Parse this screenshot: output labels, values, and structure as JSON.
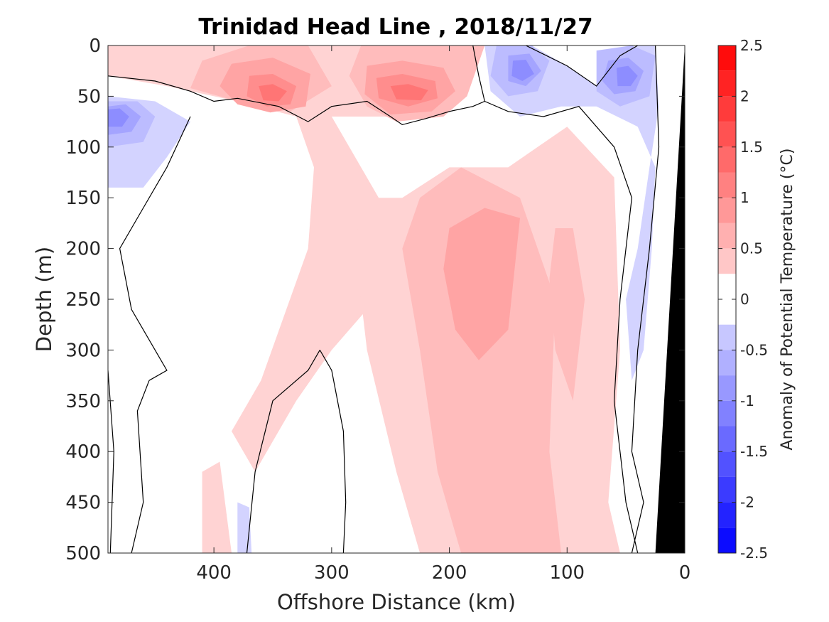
{
  "chart_data": {
    "type": "heatmap",
    "subtype": "filled-contour",
    "title": "Trinidad Head Line , 2018/11/27",
    "xlabel": "Offshore Distance (km)",
    "ylabel": "Depth (m)",
    "xlim": [
      490,
      0
    ],
    "x_reversed": true,
    "ylim": [
      0,
      500
    ],
    "y_reversed": true,
    "x_ticks": [
      400,
      300,
      200,
      100,
      0
    ],
    "x_tick_labels": [
      "400",
      "300",
      "200",
      "100",
      "0"
    ],
    "y_ticks": [
      0,
      50,
      100,
      150,
      200,
      250,
      300,
      350,
      400,
      450,
      500
    ],
    "y_tick_labels": [
      "0",
      "50",
      "100",
      "150",
      "200",
      "250",
      "300",
      "350",
      "400",
      "450",
      "500"
    ],
    "colorbar": {
      "label": "Anomaly of Potential Temperature (°C)",
      "range": [
        -2.5,
        2.5
      ],
      "step": 0.25,
      "ticks": [
        2.5,
        2,
        1.5,
        1,
        0.5,
        0,
        -0.5,
        -1,
        -1.5,
        -2,
        -2.5
      ],
      "tick_labels": [
        "2.5",
        "2",
        "1.5",
        "1",
        "0.5",
        "0",
        "-0.5",
        "-1",
        "-1.5",
        "-2",
        "-2.5"
      ],
      "colormap": "blue-white-red"
    },
    "grid": false,
    "contour_lines": [
      0
    ],
    "bathymetry_color": "#000000",
    "bathymetry": [
      [
        25,
        500
      ],
      [
        15,
        300
      ],
      [
        5,
        100
      ],
      [
        0,
        0
      ],
      [
        0,
        500
      ]
    ],
    "regions": [
      {
        "level": 0.25,
        "points": [
          [
            490,
            30
          ],
          [
            440,
            40
          ],
          [
            380,
            55
          ],
          [
            330,
            70
          ],
          [
            230,
            70
          ],
          [
            205,
            50
          ],
          [
            175,
            0
          ],
          [
            350,
            0
          ],
          [
            490,
            0
          ]
        ]
      },
      {
        "level": 0.5,
        "points": [
          [
            370,
            0
          ],
          [
            320,
            0
          ],
          [
            300,
            40
          ],
          [
            335,
            65
          ],
          [
            380,
            55
          ],
          [
            420,
            42
          ],
          [
            410,
            15
          ]
        ]
      },
      {
        "level": 0.75,
        "points": [
          [
            385,
            18
          ],
          [
            350,
            12
          ],
          [
            318,
            28
          ],
          [
            322,
            60
          ],
          [
            352,
            66
          ],
          [
            380,
            58
          ],
          [
            395,
            40
          ]
        ]
      },
      {
        "level": 1.0,
        "points": [
          [
            370,
            30
          ],
          [
            350,
            28
          ],
          [
            330,
            40
          ],
          [
            335,
            58
          ],
          [
            355,
            60
          ],
          [
            372,
            50
          ]
        ]
      },
      {
        "level": 1.25,
        "points": [
          [
            362,
            40
          ],
          [
            350,
            38
          ],
          [
            338,
            45
          ],
          [
            345,
            55
          ],
          [
            358,
            54
          ]
        ]
      },
      {
        "level": 0.5,
        "points": [
          [
            275,
            0
          ],
          [
            210,
            0
          ],
          [
            170,
            0
          ],
          [
            185,
            50
          ],
          [
            205,
            70
          ],
          [
            245,
            75
          ],
          [
            270,
            60
          ],
          [
            285,
            30
          ]
        ]
      },
      {
        "level": 0.75,
        "points": [
          [
            270,
            20
          ],
          [
            240,
            15
          ],
          [
            205,
            22
          ],
          [
            195,
            45
          ],
          [
            215,
            65
          ],
          [
            250,
            68
          ],
          [
            272,
            48
          ]
        ]
      },
      {
        "level": 1.0,
        "points": [
          [
            262,
            32
          ],
          [
            240,
            28
          ],
          [
            212,
            35
          ],
          [
            210,
            52
          ],
          [
            235,
            60
          ],
          [
            260,
            52
          ]
        ]
      },
      {
        "level": 1.25,
        "points": [
          [
            250,
            40
          ],
          [
            235,
            38
          ],
          [
            218,
            44
          ],
          [
            224,
            54
          ],
          [
            245,
            53
          ]
        ]
      },
      {
        "level": 0.25,
        "points": [
          [
            330,
            70
          ],
          [
            315,
            120
          ],
          [
            320,
            200
          ],
          [
            360,
            330
          ],
          [
            385,
            380
          ],
          [
            365,
            420
          ],
          [
            330,
            350
          ],
          [
            300,
            300
          ],
          [
            270,
            260
          ],
          [
            260,
            150
          ],
          [
            285,
            100
          ],
          [
            300,
            70
          ]
        ]
      },
      {
        "level": 0.25,
        "points": [
          [
            275,
            150
          ],
          [
            240,
            150
          ],
          [
            200,
            120
          ],
          [
            150,
            120
          ],
          [
            100,
            80
          ],
          [
            60,
            130
          ],
          [
            55,
            300
          ],
          [
            65,
            450
          ],
          [
            55,
            500
          ],
          [
            225,
            500
          ],
          [
            245,
            420
          ],
          [
            270,
            300
          ],
          [
            280,
            200
          ]
        ]
      },
      {
        "level": 0.5,
        "points": [
          [
            240,
            200
          ],
          [
            225,
            150
          ],
          [
            190,
            120
          ],
          [
            140,
            150
          ],
          [
            110,
            250
          ],
          [
            115,
            400
          ],
          [
            105,
            500
          ],
          [
            190,
            500
          ],
          [
            210,
            420
          ],
          [
            225,
            300
          ]
        ]
      },
      {
        "level": 0.75,
        "points": [
          [
            200,
            180
          ],
          [
            170,
            160
          ],
          [
            140,
            170
          ],
          [
            150,
            280
          ],
          [
            175,
            310
          ],
          [
            195,
            280
          ],
          [
            205,
            220
          ]
        ]
      },
      {
        "level": 0.5,
        "points": [
          [
            110,
            180
          ],
          [
            95,
            180
          ],
          [
            85,
            250
          ],
          [
            95,
            350
          ],
          [
            110,
            300
          ],
          [
            115,
            230
          ]
        ]
      },
      {
        "level": 0.25,
        "points": [
          [
            410,
            420
          ],
          [
            395,
            410
          ],
          [
            385,
            500
          ],
          [
            410,
            500
          ]
        ]
      },
      {
        "level": -0.25,
        "points": [
          [
            490,
            50
          ],
          [
            450,
            55
          ],
          [
            420,
            75
          ],
          [
            440,
            110
          ],
          [
            460,
            140
          ],
          [
            490,
            140
          ]
        ]
      },
      {
        "level": -0.5,
        "points": [
          [
            490,
            55
          ],
          [
            465,
            55
          ],
          [
            450,
            70
          ],
          [
            460,
            95
          ],
          [
            490,
            100
          ]
        ]
      },
      {
        "level": -0.75,
        "points": [
          [
            490,
            60
          ],
          [
            475,
            58
          ],
          [
            462,
            70
          ],
          [
            470,
            85
          ],
          [
            490,
            88
          ]
        ]
      },
      {
        "level": -1.0,
        "points": [
          [
            490,
            63
          ],
          [
            480,
            62
          ],
          [
            472,
            70
          ],
          [
            478,
            80
          ],
          [
            490,
            80
          ]
        ]
      },
      {
        "level": -0.25,
        "points": [
          [
            170,
            0
          ],
          [
            130,
            0
          ],
          [
            100,
            20
          ],
          [
            75,
            40
          ],
          [
            60,
            15
          ],
          [
            40,
            0
          ],
          [
            25,
            0
          ],
          [
            22,
            60
          ],
          [
            30,
            120
          ],
          [
            40,
            200
          ],
          [
            50,
            250
          ],
          [
            45,
            330
          ],
          [
            35,
            300
          ],
          [
            28,
            200
          ],
          [
            25,
            120
          ],
          [
            40,
            80
          ],
          [
            75,
            60
          ],
          [
            105,
            60
          ],
          [
            140,
            70
          ],
          [
            165,
            45
          ]
        ]
      },
      {
        "level": -0.5,
        "points": [
          [
            160,
            0
          ],
          [
            130,
            0
          ],
          [
            115,
            15
          ],
          [
            125,
            45
          ],
          [
            150,
            50
          ],
          [
            165,
            30
          ]
        ]
      },
      {
        "level": -0.75,
        "points": [
          [
            150,
            10
          ],
          [
            132,
            8
          ],
          [
            122,
            25
          ],
          [
            135,
            40
          ],
          [
            150,
            35
          ]
        ]
      },
      {
        "level": -1.0,
        "points": [
          [
            146,
            15
          ],
          [
            135,
            14
          ],
          [
            128,
            28
          ],
          [
            138,
            35
          ],
          [
            147,
            30
          ]
        ]
      },
      {
        "level": -0.5,
        "points": [
          [
            75,
            5
          ],
          [
            45,
            0
          ],
          [
            25,
            10
          ],
          [
            30,
            50
          ],
          [
            55,
            60
          ],
          [
            75,
            45
          ]
        ]
      },
      {
        "level": -0.75,
        "points": [
          [
            65,
            15
          ],
          [
            48,
            12
          ],
          [
            35,
            25
          ],
          [
            42,
            45
          ],
          [
            60,
            48
          ],
          [
            70,
            35
          ]
        ]
      },
      {
        "level": -1.0,
        "points": [
          [
            58,
            22
          ],
          [
            48,
            20
          ],
          [
            40,
            30
          ],
          [
            46,
            40
          ],
          [
            57,
            40
          ]
        ]
      },
      {
        "level": -0.25,
        "points": [
          [
            380,
            450
          ],
          [
            370,
            455
          ],
          [
            368,
            500
          ],
          [
            380,
            500
          ]
        ]
      }
    ],
    "zero_contours": [
      [
        [
          490,
          30
        ],
        [
          450,
          35
        ],
        [
          420,
          45
        ],
        [
          400,
          55
        ],
        [
          380,
          52
        ],
        [
          345,
          60
        ],
        [
          320,
          75
        ],
        [
          300,
          60
        ],
        [
          270,
          55
        ],
        [
          250,
          70
        ],
        [
          240,
          78
        ],
        [
          220,
          72
        ],
        [
          200,
          65
        ],
        [
          180,
          60
        ],
        [
          170,
          55
        ],
        [
          175,
          30
        ],
        [
          180,
          0
        ]
      ],
      [
        [
          490,
          320
        ],
        [
          485,
          400
        ],
        [
          488,
          500
        ]
      ],
      [
        [
          455,
          330
        ],
        [
          465,
          360
        ],
        [
          460,
          450
        ],
        [
          470,
          500
        ]
      ],
      [
        [
          420,
          70
        ],
        [
          440,
          120
        ],
        [
          460,
          160
        ],
        [
          480,
          200
        ],
        [
          470,
          260
        ],
        [
          440,
          320
        ],
        [
          455,
          330
        ]
      ],
      [
        [
          310,
          300
        ],
        [
          300,
          320
        ],
        [
          290,
          380
        ],
        [
          288,
          450
        ],
        [
          290,
          500
        ]
      ],
      [
        [
          372,
          500
        ],
        [
          365,
          420
        ],
        [
          350,
          350
        ],
        [
          320,
          320
        ],
        [
          310,
          300
        ]
      ],
      [
        [
          135,
          0
        ],
        [
          100,
          20
        ],
        [
          75,
          40
        ],
        [
          55,
          10
        ],
        [
          40,
          0
        ]
      ],
      [
        [
          170,
          55
        ],
        [
          150,
          65
        ],
        [
          120,
          70
        ],
        [
          90,
          60
        ],
        [
          60,
          100
        ],
        [
          45,
          150
        ],
        [
          55,
          250
        ],
        [
          60,
          350
        ],
        [
          50,
          450
        ],
        [
          40,
          500
        ]
      ],
      [
        [
          25,
          0
        ],
        [
          22,
          100
        ],
        [
          30,
          200
        ],
        [
          40,
          300
        ],
        [
          45,
          400
        ],
        [
          35,
          450
        ],
        [
          45,
          500
        ]
      ]
    ]
  }
}
